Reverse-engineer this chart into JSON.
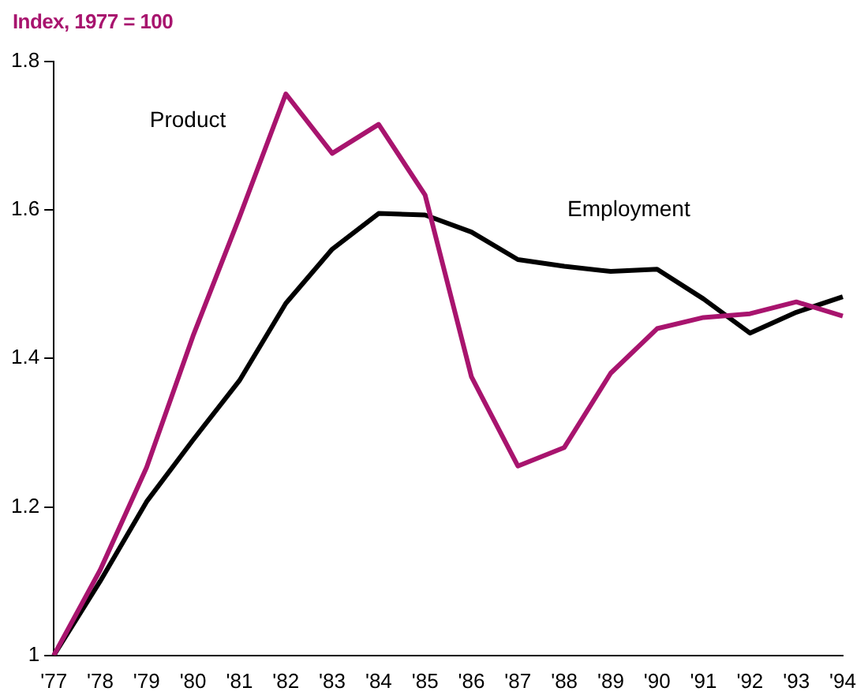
{
  "chart_data": {
    "type": "line",
    "title": "Index, 1977 = 100",
    "categories": [
      "'77",
      "'78",
      "'79",
      "'80",
      "'81",
      "'82",
      "'83",
      "'84",
      "'85",
      "'86",
      "'87",
      "'88",
      "'89",
      "'90",
      "'91",
      "'92",
      "'93",
      "'94"
    ],
    "series": [
      {
        "name": "Product",
        "color": "#a8146e",
        "values": [
          1,
          1.115,
          1.253,
          1.43,
          1.59,
          1.756,
          1.676,
          1.715,
          1.62,
          1.375,
          1.255,
          1.28,
          1.38,
          1.44,
          1.455,
          1.46,
          1.476,
          1.457
        ]
      },
      {
        "name": "Employment",
        "color": "#000000",
        "values": [
          1,
          1.1,
          1.207,
          1.29,
          1.37,
          1.474,
          1.547,
          1.595,
          1.593,
          1.57,
          1.533,
          1.524,
          1.517,
          1.52,
          1.48,
          1.434,
          1.462,
          1.483
        ]
      }
    ],
    "ylim": [
      1,
      1.8
    ],
    "yticks": [
      1,
      1.2,
      1.4,
      1.6,
      1.8
    ],
    "grid": false,
    "legend": false,
    "marker": "none",
    "line_style": "solid"
  }
}
